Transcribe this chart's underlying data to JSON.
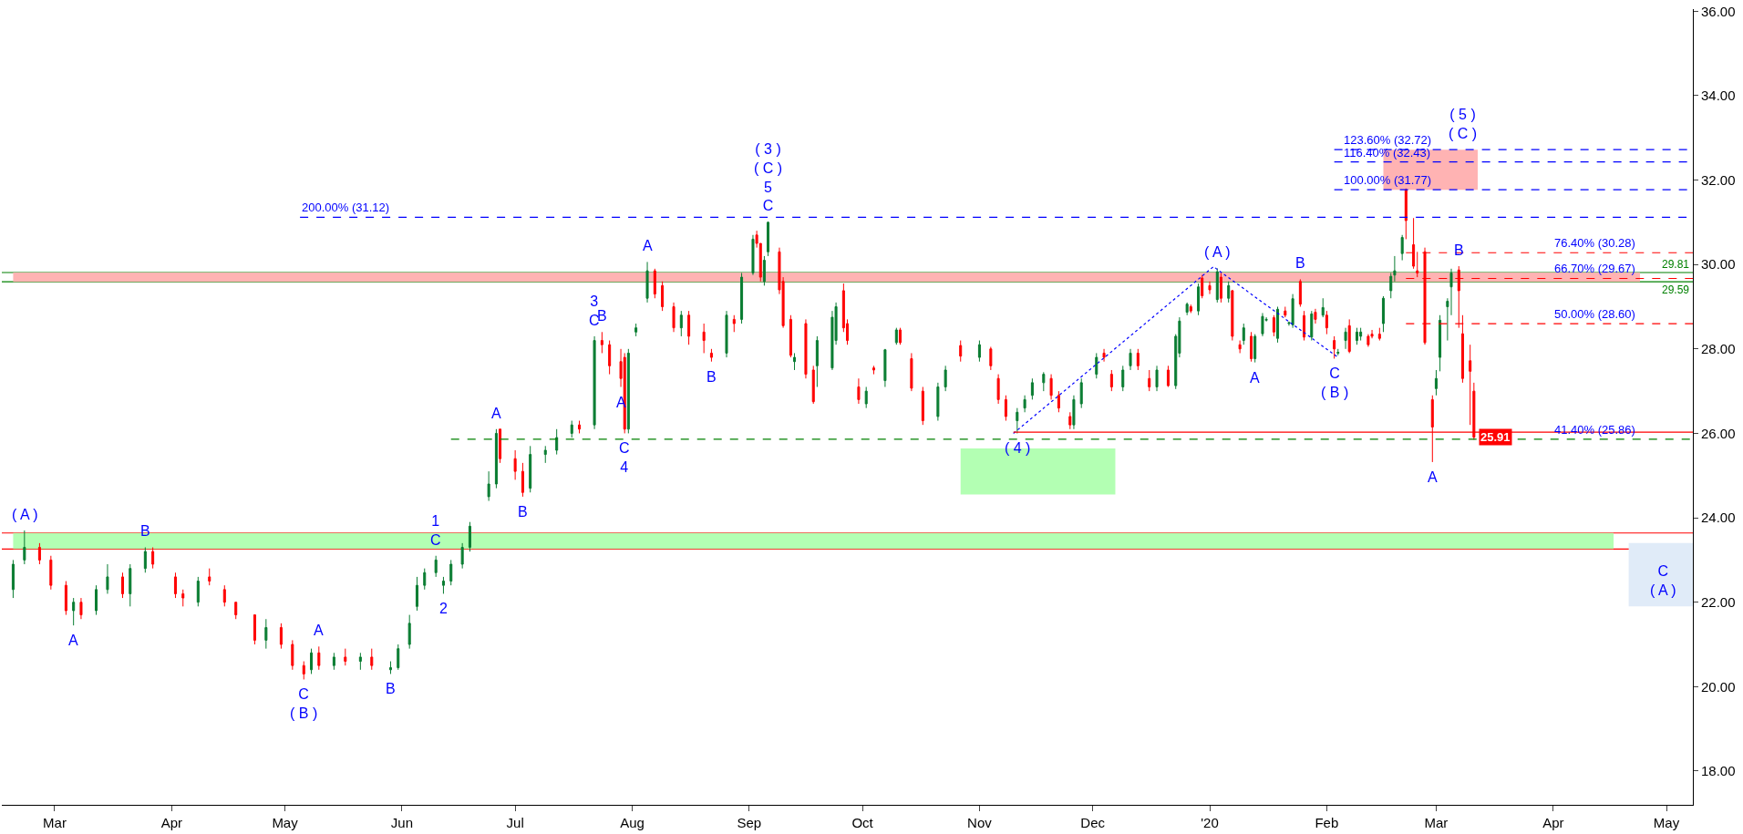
{
  "chart_data": {
    "type": "candlestick",
    "colors": [
      "#0a7d32",
      "#0a7d32",
      "#ff0000",
      "#ff0000",
      "#ff0000",
      "#0a7d32",
      "#ff0000",
      "#0a7d32",
      "#0a7d32",
      "#ff0000",
      "#0a7d32",
      "#0a7d32",
      "#ff0000",
      "#ff0000",
      "#ff0000",
      "#0a7d32",
      "#ff0000",
      "#ff0000",
      "#ff0000",
      "#ff0000",
      "#0a7d32",
      "#ff0000",
      "#ff0000",
      "#ff0000",
      "#0a7d32",
      "#ff0000",
      "#0a7d32",
      "#ff0000",
      "#0a7d32",
      "#ff0000",
      "#0a7d32",
      "#0a7d32",
      "#0a7d32",
      "#0a7d32",
      "#0a7d32",
      "#0a7d32",
      "#0a7d32",
      "#0a7d32",
      "#0a7d32",
      "#0a7d32",
      "#0a7d32",
      "#0a7d32",
      "#ff0000",
      "#ff0000",
      "#ff0000",
      "#0a7d32",
      "#0a7d32",
      "#0a7d32",
      "#0a7d32",
      "#ff0000",
      "#0a7d32",
      "#ff0000",
      "#ff0000",
      "#ff0000",
      "#ff0000",
      "#0a7d32",
      "#0a7d32",
      "#0a7d32",
      "#ff0000",
      "#ff0000",
      "#ff0000",
      "#0a7d32",
      "#ff0000",
      "#ff0000",
      "#ff0000",
      "#0a7d32",
      "#ff0000",
      "#0a7d32",
      "#0a7d32",
      "#ff0000",
      "#ff0000",
      "#0a7d32",
      "#0a7d32",
      "#ff0000",
      "#ff0000",
      "#ff0000",
      "#0a7d32",
      "#ff0000",
      "#ff0000",
      "#0a7d32",
      "#0a7d32",
      "#0a7d32",
      "#ff0000",
      "#ff0000",
      "#ff0000",
      "#0a7d32",
      "#ff0000",
      "#0a7d32",
      "#0a7d32",
      "#ff0000",
      "#ff0000",
      "#ff0000",
      "#0a7d32",
      "#0a7d32",
      "#ff0000",
      "#0a7d32",
      "#ff0000",
      "#ff0000",
      "#ff0000",
      "#0a7d32",
      "#0a7d32",
      "#0a7d32",
      "#0a7d32",
      "#ff0000",
      "#ff0000",
      "#ff0000",
      "#0a7d32",
      "#0a7d32",
      "#0a7d32",
      "#ff0000",
      "#ff0000",
      "#0a7d32",
      "#0a7d32",
      "#ff0000",
      "#ff0000",
      "#0a7d32",
      "#ff0000",
      "#0a7d32",
      "#0a7d32",
      "#0a7d32",
      "#ff0000",
      "#0a7d32",
      "#ff0000",
      "#ff0000",
      "#0a7d32",
      "#ff0000",
      "#0a7d32",
      "#ff0000",
      "#ff0000",
      "#0a7d32",
      "#ff0000",
      "#0a7d32",
      "#0a7d32",
      "#0a7d32",
      "#ff0000",
      "#0a7d32",
      "#ff0000",
      "#0a7d32",
      "#0a7d32",
      "#ff0000",
      "#ff0000",
      "#0a7d32",
      "#ff0000",
      "#0a7d32",
      "#ff0000",
      "#ff0000",
      "#0a7d32",
      "#0a7d32",
      "#ff0000",
      "#0a7d32",
      "#0a7d32",
      "#ff0000",
      "#ff0000",
      "#ff0000",
      "#0a7d32",
      "#0a7d32",
      "#0a7d32",
      "#0a7d32",
      "#ff0000",
      "#ff0000",
      "#ff0000",
      "#ff0000",
      "#ff0000",
      "#0a7d32",
      "#0a7d32",
      "#0a7d32",
      "#0a7d32",
      "#ff0000",
      "#ff0000",
      "#ff0000",
      "#ff0000"
    ],
    "x": [
      "2019-02-18",
      "2019-02-21",
      "2019-02-25",
      "2019-02-28",
      "2019-03-04",
      "2019-03-06",
      "2019-03-08",
      "2019-03-12",
      "2019-03-15",
      "2019-03-19",
      "2019-03-21",
      "2019-03-25",
      "2019-03-27",
      "2019-04-02",
      "2019-04-04",
      "2019-04-08",
      "2019-04-11",
      "2019-04-15",
      "2019-04-18",
      "2019-04-23",
      "2019-04-26",
      "2019-04-30",
      "2019-05-03",
      "2019-05-06",
      "2019-05-08",
      "2019-05-10",
      "2019-05-14",
      "2019-05-17",
      "2019-05-21",
      "2019-05-24",
      "2019-05-29",
      "2019-05-31",
      "2019-06-03",
      "2019-06-05",
      "2019-06-07",
      "2019-06-10",
      "2019-06-12",
      "2019-06-14",
      "2019-06-17",
      "2019-06-19",
      "2019-06-24",
      "2019-06-26",
      "2019-06-27",
      "2019-07-01",
      "2019-07-03",
      "2019-07-05",
      "2019-07-09",
      "2019-07-12",
      "2019-07-16",
      "2019-07-18",
      "2019-07-22",
      "2019-07-24",
      "2019-07-26",
      "2019-07-29",
      "2019-07-30",
      "2019-07-31",
      "2019-08-02",
      "2019-08-05",
      "2019-08-07",
      "2019-08-09",
      "2019-08-12",
      "2019-08-14",
      "2019-08-16",
      "2019-08-20",
      "2019-08-22",
      "2019-08-26",
      "2019-08-28",
      "2019-08-30",
      "2019-09-02",
      "2019-09-03",
      "2019-09-04",
      "2019-09-05",
      "2019-09-06",
      "2019-09-09",
      "2019-09-10",
      "2019-09-12",
      "2019-09-13",
      "2019-09-16",
      "2019-09-18",
      "2019-09-19",
      "2019-09-23",
      "2019-09-24",
      "2019-09-26",
      "2019-09-27",
      "2019-09-30",
      "2019-10-02",
      "2019-10-04",
      "2019-10-07",
      "2019-10-10",
      "2019-10-11",
      "2019-10-14",
      "2019-10-17",
      "2019-10-21",
      "2019-10-23",
      "2019-10-27",
      "2019-11-01",
      "2019-11-04",
      "2019-11-06",
      "2019-11-08",
      "2019-11-11",
      "2019-11-13",
      "2019-11-15",
      "2019-11-18",
      "2019-11-20",
      "2019-11-22",
      "2019-11-25",
      "2019-11-26",
      "2019-11-28",
      "2019-12-02",
      "2019-12-04",
      "2019-12-06",
      "2019-12-09",
      "2019-12-11",
      "2019-12-13",
      "2019-12-16",
      "2019-12-18",
      "2019-12-21",
      "2019-12-23",
      "2019-12-24",
      "2019-12-26",
      "2019-12-27",
      "2019-12-29",
      "2019-12-30",
      "2020-01-01",
      "2020-01-03",
      "2020-01-04",
      "2020-01-06",
      "2020-01-07",
      "2020-01-09",
      "2020-01-10",
      "2020-01-12",
      "2020-01-13",
      "2020-01-15",
      "2020-01-16",
      "2020-01-18",
      "2020-01-19",
      "2020-01-21",
      "2020-01-22",
      "2020-01-23",
      "2020-01-25",
      "2020-01-26",
      "2020-01-28",
      "2020-01-29",
      "2020-01-31",
      "2020-02-01",
      "2020-02-03",
      "2020-02-04",
      "2020-02-06",
      "2020-02-07",
      "2020-02-09",
      "2020-02-10",
      "2020-02-12",
      "2020-02-13",
      "2020-02-15",
      "2020-02-16",
      "2020-02-18",
      "2020-02-19",
      "2020-02-21",
      "2020-02-22",
      "2020-02-24",
      "2020-02-25",
      "2020-02-27",
      "2020-02-29",
      "2020-03-01",
      "2020-03-02",
      "2020-03-04",
      "2020-03-05",
      "2020-03-07",
      "2020-03-08",
      "2020-03-10",
      "2020-03-11"
    ],
    "ohlc": [
      [
        22.3,
        23.0,
        22.1,
        22.9
      ],
      [
        23.0,
        23.7,
        22.9,
        23.3
      ],
      [
        23.3,
        23.4,
        22.9,
        23.0
      ],
      [
        23.0,
        23.1,
        22.3,
        22.4
      ],
      [
        22.4,
        22.5,
        21.7,
        21.8
      ],
      [
        21.8,
        22.1,
        21.45,
        22.0
      ],
      [
        22.0,
        22.1,
        21.6,
        21.7
      ],
      [
        21.8,
        22.4,
        21.7,
        22.3
      ],
      [
        22.3,
        22.9,
        22.2,
        22.6
      ],
      [
        22.6,
        22.7,
        22.1,
        22.2
      ],
      [
        22.2,
        22.9,
        21.9,
        22.8
      ],
      [
        22.8,
        23.3,
        22.7,
        23.2
      ],
      [
        23.2,
        23.3,
        22.8,
        22.9
      ],
      [
        22.6,
        22.7,
        22.1,
        22.2
      ],
      [
        22.2,
        22.3,
        21.9,
        22.1
      ],
      [
        22.0,
        22.6,
        21.9,
        22.5
      ],
      [
        22.6,
        22.8,
        22.4,
        22.5
      ],
      [
        22.3,
        22.4,
        21.9,
        22.0
      ],
      [
        22.0,
        22.0,
        21.6,
        21.7
      ],
      [
        21.7,
        21.7,
        21.0,
        21.1
      ],
      [
        21.1,
        21.6,
        20.9,
        21.4
      ],
      [
        21.4,
        21.5,
        20.9,
        21.0
      ],
      [
        21.0,
        21.1,
        20.4,
        20.5
      ],
      [
        20.5,
        20.6,
        20.17,
        20.3
      ],
      [
        20.4,
        20.9,
        20.3,
        20.8
      ],
      [
        20.8,
        20.95,
        20.4,
        20.5
      ],
      [
        20.5,
        20.8,
        20.4,
        20.7
      ],
      [
        20.7,
        20.9,
        20.5,
        20.6
      ],
      [
        20.6,
        20.8,
        20.4,
        20.7
      ],
      [
        20.7,
        20.9,
        20.4,
        20.5
      ],
      [
        20.4,
        20.6,
        20.3,
        20.45
      ],
      [
        20.45,
        21.0,
        20.4,
        20.9
      ],
      [
        21.0,
        21.7,
        20.9,
        21.5
      ],
      [
        21.9,
        22.6,
        21.8,
        22.4
      ],
      [
        22.4,
        22.8,
        22.3,
        22.7
      ],
      [
        22.7,
        23.1,
        22.6,
        23.0
      ],
      [
        22.4,
        22.6,
        22.2,
        22.5
      ],
      [
        22.5,
        23.0,
        22.4,
        22.9
      ],
      [
        22.9,
        23.4,
        22.8,
        23.3
      ],
      [
        23.3,
        23.9,
        23.2,
        23.8
      ],
      [
        24.5,
        25.1,
        24.4,
        24.8
      ],
      [
        24.8,
        26.1,
        24.7,
        26.0
      ],
      [
        26.1,
        26.1,
        25.3,
        25.4
      ],
      [
        25.4,
        25.6,
        24.9,
        25.1
      ],
      [
        25.1,
        25.3,
        24.5,
        24.6
      ],
      [
        24.7,
        25.7,
        24.6,
        25.5
      ],
      [
        25.5,
        25.7,
        25.3,
        25.6
      ],
      [
        25.6,
        26.1,
        25.5,
        25.9
      ],
      [
        26.0,
        26.3,
        25.9,
        26.2
      ],
      [
        26.2,
        26.3,
        26.0,
        26.1
      ],
      [
        26.2,
        28.3,
        26.1,
        28.2
      ],
      [
        28.2,
        28.4,
        27.9,
        28.1
      ],
      [
        28.1,
        28.2,
        27.4,
        27.6
      ],
      [
        27.7,
        28.0,
        27.1,
        27.3
      ],
      [
        27.8,
        27.9,
        26.0,
        26.1
      ],
      [
        26.1,
        28.0,
        26.0,
        27.9
      ],
      [
        28.4,
        28.6,
        28.3,
        28.5
      ],
      [
        29.2,
        30.06,
        29.1,
        29.85
      ],
      [
        29.85,
        29.9,
        29.2,
        29.3
      ],
      [
        29.5,
        29.6,
        28.9,
        29.0
      ],
      [
        29.0,
        29.1,
        28.4,
        28.5
      ],
      [
        28.5,
        28.9,
        28.3,
        28.8
      ],
      [
        28.8,
        28.9,
        28.1,
        28.3
      ],
      [
        28.4,
        28.6,
        27.9,
        28.2
      ],
      [
        27.9,
        28.0,
        27.7,
        27.8
      ],
      [
        27.9,
        28.9,
        27.8,
        28.8
      ],
      [
        28.7,
        28.8,
        28.4,
        28.6
      ],
      [
        28.7,
        29.8,
        28.6,
        29.7
      ],
      [
        29.8,
        30.7,
        29.75,
        30.6
      ],
      [
        30.7,
        30.8,
        30.4,
        30.5
      ],
      [
        30.5,
        30.5,
        29.6,
        29.7
      ],
      [
        29.6,
        30.2,
        29.5,
        30.1
      ],
      [
        30.3,
        31.02,
        30.2,
        31.0
      ],
      [
        30.3,
        30.4,
        29.3,
        29.4
      ],
      [
        29.6,
        29.7,
        28.5,
        28.55
      ],
      [
        28.7,
        28.8,
        27.8,
        27.85
      ],
      [
        27.7,
        27.9,
        27.5,
        27.8
      ],
      [
        28.6,
        28.7,
        27.3,
        27.4
      ],
      [
        27.5,
        27.6,
        26.7,
        26.75
      ],
      [
        27.6,
        28.3,
        27.1,
        28.2
      ],
      [
        27.55,
        28.9,
        27.5,
        28.75
      ],
      [
        28.2,
        29.1,
        28.1,
        29.0
      ],
      [
        29.38,
        29.55,
        28.4,
        28.5
      ],
      [
        28.6,
        28.7,
        28.1,
        28.2
      ],
      [
        27.1,
        27.3,
        26.7,
        26.8
      ],
      [
        26.7,
        27.1,
        26.6,
        27.0
      ],
      [
        27.55,
        27.6,
        27.4,
        27.5
      ],
      [
        27.25,
        28.0,
        27.1,
        27.98
      ],
      [
        28.15,
        28.5,
        28.1,
        28.45
      ],
      [
        28.45,
        28.5,
        28.1,
        28.15
      ],
      [
        27.77,
        27.9,
        27.0,
        27.07
      ],
      [
        27.0,
        27.1,
        26.2,
        26.3
      ],
      [
        26.4,
        27.2,
        26.3,
        27.1
      ],
      [
        27.1,
        27.6,
        27.0,
        27.5
      ],
      [
        28.08,
        28.2,
        27.7,
        27.83
      ],
      [
        27.8,
        28.2,
        27.7,
        28.1
      ],
      [
        28.0,
        28.05,
        27.5,
        27.6
      ],
      [
        27.3,
        27.4,
        26.7,
        26.8
      ],
      [
        26.8,
        26.9,
        26.3,
        26.4
      ],
      [
        26.3,
        26.6,
        26.0,
        26.5
      ],
      [
        26.6,
        26.9,
        26.5,
        26.8
      ],
      [
        26.9,
        27.3,
        26.8,
        27.2
      ],
      [
        27.2,
        27.45,
        27.0,
        27.4
      ],
      [
        27.3,
        27.4,
        26.8,
        26.9
      ],
      [
        26.9,
        27.0,
        26.5,
        26.6
      ],
      [
        26.4,
        26.5,
        26.1,
        26.2
      ],
      [
        26.2,
        26.9,
        26.1,
        26.8
      ],
      [
        26.7,
        27.3,
        26.6,
        27.2
      ],
      [
        27.4,
        27.9,
        27.3,
        27.8
      ],
      [
        27.9,
        28.0,
        27.7,
        27.8
      ],
      [
        27.4,
        27.5,
        27.0,
        27.1
      ],
      [
        27.1,
        27.6,
        27.0,
        27.5
      ],
      [
        27.6,
        28.0,
        27.5,
        27.9
      ],
      [
        27.9,
        28.0,
        27.5,
        27.6
      ],
      [
        27.3,
        27.5,
        27.0,
        27.1
      ],
      [
        27.1,
        27.6,
        27.0,
        27.5
      ],
      [
        27.5,
        27.6,
        27.1,
        27.13
      ],
      [
        27.13,
        28.35,
        27.05,
        28.3
      ],
      [
        27.9,
        28.75,
        27.8,
        28.66
      ],
      [
        28.87,
        29.1,
        28.8,
        29.06
      ],
      [
        29.0,
        29.05,
        28.85,
        28.9
      ],
      [
        28.9,
        29.55,
        28.8,
        29.47
      ],
      [
        29.68,
        29.75,
        29.2,
        29.26
      ],
      [
        29.5,
        29.6,
        29.3,
        29.4
      ],
      [
        29.17,
        29.91,
        29.1,
        29.83
      ],
      [
        29.7,
        29.8,
        29.1,
        29.2
      ],
      [
        29.2,
        29.6,
        29.1,
        29.5
      ],
      [
        29.38,
        29.4,
        28.2,
        28.3
      ],
      [
        28.1,
        28.2,
        27.9,
        28.0
      ],
      [
        28.2,
        28.6,
        28.1,
        28.5
      ],
      [
        28.3,
        28.4,
        27.7,
        27.77
      ],
      [
        27.77,
        28.35,
        27.68,
        28.3
      ],
      [
        28.36,
        28.85,
        28.3,
        28.77
      ],
      [
        28.68,
        28.75,
        28.65,
        28.7
      ],
      [
        28.74,
        28.8,
        28.3,
        28.4
      ],
      [
        28.25,
        29.0,
        28.15,
        28.94
      ],
      [
        28.9,
        29.0,
        28.75,
        28.8
      ],
      [
        28.6,
        28.65,
        28.55,
        28.62
      ],
      [
        28.57,
        29.3,
        28.5,
        29.19
      ],
      [
        29.6,
        29.65,
        29.0,
        29.06
      ],
      [
        28.79,
        28.9,
        28.2,
        28.28
      ],
      [
        28.28,
        28.9,
        28.2,
        28.83
      ],
      [
        28.87,
        28.95,
        28.6,
        28.7
      ],
      [
        28.8,
        29.2,
        28.75,
        28.98
      ],
      [
        28.8,
        28.9,
        28.35,
        28.5
      ],
      [
        28.2,
        28.3,
        27.77,
        28.0
      ],
      [
        27.9,
        28.0,
        27.85,
        27.92
      ],
      [
        28.2,
        28.5,
        28.0,
        28.4
      ],
      [
        28.55,
        28.7,
        27.9,
        27.94
      ],
      [
        28.2,
        28.5,
        28.1,
        28.4
      ],
      [
        28.3,
        28.5,
        28.2,
        28.4
      ],
      [
        28.3,
        28.35,
        28.05,
        28.1
      ],
      [
        28.35,
        28.45,
        28.25,
        28.3
      ],
      [
        28.35,
        28.5,
        28.2,
        28.25
      ],
      [
        28.6,
        29.25,
        28.4,
        29.2
      ],
      [
        29.38,
        29.8,
        29.2,
        29.72
      ],
      [
        29.75,
        30.2,
        29.6,
        29.85
      ],
      [
        30.26,
        30.7,
        30.1,
        30.64
      ],
      [
        31.77,
        31.8,
        30.6,
        31.04
      ],
      [
        30.47,
        31.1,
        29.9,
        29.96
      ],
      [
        29.85,
        30.3,
        29.7,
        29.8
      ],
      [
        30.3,
        30.4,
        28.1,
        28.15
      ],
      [
        26.8,
        26.9,
        25.32,
        26.15
      ],
      [
        27.06,
        27.5,
        26.9,
        27.3
      ],
      [
        27.8,
        28.8,
        27.47,
        28.68
      ],
      [
        29.0,
        29.2,
        28.2,
        29.13
      ],
      [
        29.47,
        29.9,
        28.8,
        29.8
      ],
      [
        29.87,
        29.96,
        28.5,
        29.38
      ],
      [
        28.36,
        28.8,
        27.2,
        27.3
      ],
      [
        27.72,
        28.1,
        26.2,
        27.47
      ],
      [
        27.0,
        27.2,
        25.85,
        25.91
      ]
    ],
    "series": [
      {
        "type": "area",
        "color": "#ffb3b3",
        "x": [
          "2019-02-18",
          "2020-04-24"
        ],
        "values": [
          null,
          null
        ],
        "lower": [
          29.59,
          29.59
        ],
        "upper": [
          29.81,
          29.81
        ]
      },
      {
        "type": "area",
        "color": "#b3ffb3",
        "x": [
          "2019-02-18",
          "2020-04-17"
        ],
        "values": [
          null,
          null
        ],
        "lower": [
          23.26,
          23.26
        ],
        "upper": [
          23.64,
          23.64
        ]
      },
      {
        "type": "area",
        "color": "#ffb3b3",
        "x": [
          "2020-02-16",
          "2020-03-12"
        ],
        "values": [
          null,
          null
        ],
        "lower": [
          31.77,
          31.77
        ],
        "upper": [
          32.72,
          32.72
        ]
      },
      {
        "type": "area",
        "color": "#b3ffb3",
        "x": [
          "2019-10-27",
          "2019-12-07"
        ],
        "values": [
          null,
          null
        ],
        "lower": [
          24.55,
          24.55
        ],
        "upper": [
          25.64,
          25.64
        ]
      },
      {
        "type": "area",
        "color": "#e0ebf8",
        "x": [
          "2020-04-21",
          "2020-05-08"
        ],
        "values": [
          null,
          null
        ],
        "lower": [
          21.9,
          21.9
        ],
        "upper": [
          23.4,
          23.4
        ]
      },
      {
        "type": "line",
        "color": "#0000ff",
        "line_style": "dotted",
        "x": [
          "2019-11-10",
          "2020-01-02",
          "2020-02-04"
        ],
        "values": [
          26.0,
          29.95,
          27.8
        ]
      },
      {
        "type": "line",
        "color": "#0000ff",
        "line_style": "dashed",
        "x": [
          "2019-05-05",
          "2020-05-08"
        ],
        "values": [
          31.12,
          31.12
        ]
      },
      {
        "type": "line",
        "color": "#0000ff",
        "line_style": "dashed",
        "x": [
          "2020-02-03",
          "2020-05-08"
        ],
        "values": [
          32.72,
          32.72
        ]
      },
      {
        "type": "line",
        "color": "#0000ff",
        "line_style": "dashed",
        "x": [
          "2020-02-03",
          "2020-05-08"
        ],
        "values": [
          32.43,
          32.43
        ]
      },
      {
        "type": "line",
        "color": "#0000ff",
        "line_style": "dashed",
        "x": [
          "2020-02-03",
          "2020-05-08"
        ],
        "values": [
          31.77,
          31.77
        ]
      },
      {
        "type": "line",
        "color": "#ff0000",
        "line_style": "dashed",
        "x": [
          "2020-02-22",
          "2020-05-08"
        ],
        "values": [
          30.28,
          30.28
        ]
      },
      {
        "type": "line",
        "color": "#ff0000",
        "line_style": "dashed",
        "x": [
          "2020-02-22",
          "2020-05-08"
        ],
        "values": [
          29.67,
          29.67
        ]
      },
      {
        "type": "line",
        "color": "#ff0000",
        "line_style": "dashed",
        "x": [
          "2020-02-22",
          "2020-05-08"
        ],
        "values": [
          28.6,
          28.6
        ]
      },
      {
        "type": "line",
        "color": "#008000",
        "line_style": "dashed",
        "x": [
          "2019-06-14",
          "2020-05-08"
        ],
        "values": [
          25.86,
          25.86
        ]
      },
      {
        "type": "line",
        "color": "#ff0000",
        "line_style": "solid",
        "x": [
          "2019-11-10",
          "2020-05-08"
        ],
        "values": [
          26.03,
          26.03
        ]
      }
    ],
    "xlim": [
      "2019-02-15",
      "2020-05-08"
    ],
    "xticks": [
      {
        "value": "2019-03-01",
        "label": "Mar"
      },
      {
        "value": "2019-04-01",
        "label": "Apr"
      },
      {
        "value": "2019-05-01",
        "label": "May"
      },
      {
        "value": "2019-06-01",
        "label": "Jun"
      },
      {
        "value": "2019-07-01",
        "label": "Jul"
      },
      {
        "value": "2019-08-01",
        "label": "Aug"
      },
      {
        "value": "2019-09-01",
        "label": "Sep"
      },
      {
        "value": "2019-10-01",
        "label": "Oct"
      },
      {
        "value": "2019-11-01",
        "label": "Nov"
      },
      {
        "value": "2019-12-01",
        "label": "Dec"
      },
      {
        "value": "2020-01-01",
        "label": "'20"
      },
      {
        "value": "2020-02-01",
        "label": "Feb"
      },
      {
        "value": "2020-03-01",
        "label": "Mar"
      },
      {
        "value": "2020-04-01",
        "label": "Apr"
      },
      {
        "value": "2020-05-01",
        "label": "May"
      }
    ],
    "ylim": [
      17.2,
      36.05
    ],
    "yticks": [
      {
        "value": 18,
        "label": "18.00"
      },
      {
        "value": 20,
        "label": "20.00"
      },
      {
        "value": 22,
        "label": "22.00"
      },
      {
        "value": 24,
        "label": "24.00"
      },
      {
        "value": 26,
        "label": "26.00"
      },
      {
        "value": 28,
        "label": "28.00"
      },
      {
        "value": 30,
        "label": "30.00"
      },
      {
        "value": 32,
        "label": "32.00"
      },
      {
        "value": 34,
        "label": "34.00"
      },
      {
        "value": 36,
        "label": "36.00"
      }
    ],
    "ref_lines": [
      {
        "axis": "y",
        "value": 29.81,
        "label": "29.81",
        "color": "#008000"
      },
      {
        "axis": "y",
        "value": 29.59,
        "label": "29.59",
        "color": "#008000"
      },
      {
        "axis": "y",
        "value": 23.64,
        "color": "#ff0000"
      },
      {
        "axis": "y",
        "value": 23.26,
        "color": "#ff0000"
      }
    ],
    "annotations": [
      {
        "text": "( A )",
        "x": "2019-02-21",
        "y": 23.7
      },
      {
        "text": "A",
        "x": "2019-03-06",
        "y": 21.45
      },
      {
        "text": "B",
        "x": "2019-03-25",
        "y": 23.3
      },
      {
        "text": "C\n( B )",
        "x": "2019-05-06",
        "y": 20.17
      },
      {
        "text": "A",
        "x": "2019-05-10",
        "y": 20.95
      },
      {
        "text": "B",
        "x": "2019-05-29",
        "y": 20.3
      },
      {
        "text": "1\nC",
        "x": "2019-06-10",
        "y": 23.1
      },
      {
        "text": "2",
        "x": "2019-06-12",
        "y": 22.2
      },
      {
        "text": "A",
        "x": "2019-06-26",
        "y": 26.1
      },
      {
        "text": "B",
        "x": "2019-07-03",
        "y": 24.5
      },
      {
        "text": "3\nC",
        "x": "2019-07-22",
        "y": 28.3
      },
      {
        "text": "B",
        "x": "2019-07-24",
        "y": 28.4
      },
      {
        "text": "A",
        "x": "2019-07-29",
        "y": 27.1
      },
      {
        "text": "C\n4",
        "x": "2019-07-30",
        "y": 26.0
      },
      {
        "text": "A",
        "x": "2019-08-05",
        "y": 30.06
      },
      {
        "text": "B",
        "x": "2019-08-22",
        "y": 27.7
      },
      {
        "text": "( 3 )\n( C )\n5\nC",
        "x": "2019-09-06",
        "y": 31.02
      },
      {
        "text": "( 4 )",
        "x": "2019-11-11",
        "y": 26.0
      },
      {
        "text": "( A )",
        "x": "2020-01-03",
        "y": 29.91
      },
      {
        "text": "A",
        "x": "2020-01-13",
        "y": 27.68
      },
      {
        "text": "B",
        "x": "2020-01-25",
        "y": 29.65
      },
      {
        "text": "C\n( B )",
        "x": "2020-02-03",
        "y": 27.77
      },
      {
        "text": "( 5 )\n( C )",
        "x": "2020-03-08",
        "y": 32.72
      },
      {
        "text": "B",
        "x": "2020-03-07",
        "y": 29.96
      },
      {
        "text": "A",
        "x": "2020-02-29",
        "y": 25.32
      },
      {
        "text": "C\n( A )",
        "x": "2020-04-30",
        "y": 21.9
      },
      {
        "text": "200.00% (31.12)",
        "x": "2019-05-17",
        "y": 31.12
      },
      {
        "text": "123.60% (32.72)",
        "x": "2020-02-17",
        "y": 32.72
      },
      {
        "text": "116.40% (32.43)",
        "x": "2020-02-17",
        "y": 32.43
      },
      {
        "text": "100.00% (31.77)",
        "x": "2020-02-17",
        "y": 31.77
      },
      {
        "text": "76.40% (30.28)",
        "x": "2020-04-12",
        "y": 30.28
      },
      {
        "text": "66.70% (29.67)",
        "x": "2020-04-12",
        "y": 29.67
      },
      {
        "text": "50.00% (28.60)",
        "x": "2020-04-12",
        "y": 28.6
      },
      {
        "text": "41.40% (25.86)",
        "x": "2020-04-12",
        "y": 25.86
      },
      {
        "text": "25.91",
        "x": "2020-03-11",
        "y": 25.91
      }
    ]
  }
}
